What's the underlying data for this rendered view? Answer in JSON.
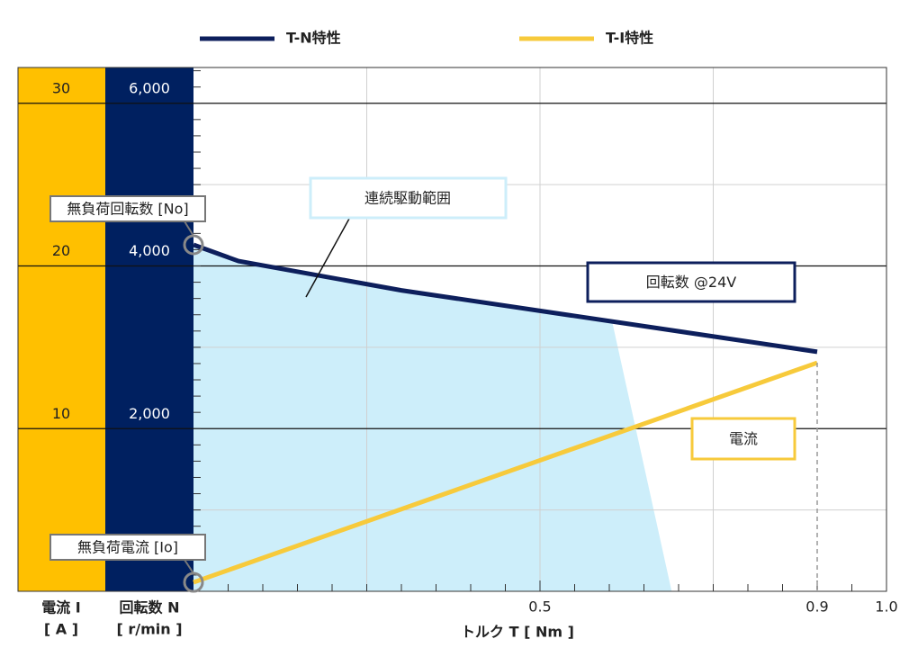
{
  "chart_data": {
    "type": "line",
    "series": [
      {
        "name": "T-N特性",
        "color": "#0d1f5c",
        "x": [
          0,
          0.065,
          0.3,
          0.9
        ],
        "values": [
          4260,
          4060,
          3700,
          2945
        ]
      },
      {
        "name": "T-I特性",
        "color": "#f7ca3b",
        "axis": "y2",
        "x": [
          0,
          0.9
        ],
        "values": [
          0.55,
          14.05
        ]
      }
    ],
    "region": {
      "label": "連続駆動範囲",
      "color": "#cdeefa",
      "x": [
        0,
        0.065,
        0.3,
        0.604,
        0.69
      ],
      "values": [
        4260,
        4060,
        3700,
        3320,
        0
      ]
    },
    "xlabel": "トルク T [ Nm ]",
    "ylabel": [
      "回転数 N",
      "[ r/min ]"
    ],
    "y2label": [
      "電流 I",
      "[ A ]"
    ],
    "xlim": [
      0,
      1
    ],
    "xticks": [
      0.5,
      0.9,
      {
        "value": 1,
        "label": "1.0"
      }
    ],
    "xgrid": [
      0.25,
      0.5,
      0.75
    ],
    "xminor_step": 0.05,
    "ylim": [
      0,
      6440
    ],
    "yticks": [
      {
        "value": 2000,
        "label": "2,000"
      },
      {
        "value": 4000,
        "label": "4,000"
      },
      {
        "value": 6000,
        "label": "6,000"
      }
    ],
    "ygrid": [
      1000,
      3000,
      5000
    ],
    "yminor_step": 200,
    "y2lim": [
      0,
      32.2
    ],
    "y2ticks": [
      10,
      20,
      30
    ],
    "annotations": [
      "回転数 @24V",
      "電流",
      "無負荷回転数 [No]",
      "無負荷電流 [Io]"
    ]
  }
}
